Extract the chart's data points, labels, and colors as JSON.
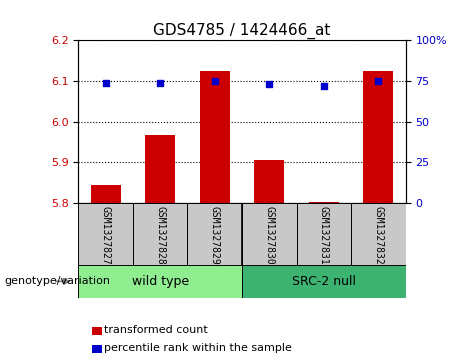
{
  "title": "GDS4785 / 1424466_at",
  "samples": [
    "GSM1327827",
    "GSM1327828",
    "GSM1327829",
    "GSM1327830",
    "GSM1327831",
    "GSM1327832"
  ],
  "bar_values": [
    5.845,
    5.968,
    6.125,
    5.905,
    5.802,
    6.125
  ],
  "percentile_values": [
    6.095,
    6.095,
    6.1,
    6.093,
    6.088,
    6.1
  ],
  "bar_bottom": 5.8,
  "ylim": [
    5.8,
    6.2
  ],
  "yticks": [
    5.8,
    5.9,
    6.0,
    6.1,
    6.2
  ],
  "right_ytick_vals": [
    0,
    25,
    50,
    75,
    100
  ],
  "right_ytick_labels": [
    "0",
    "25",
    "50",
    "75",
    "100%"
  ],
  "bar_color": "#cc0000",
  "dot_color": "#0000cc",
  "group1_label": "wild type",
  "group2_label": "SRC-2 null",
  "group1_color": "#90ee90",
  "group2_color": "#3cb371",
  "sample_bg_color": "#c8c8c8",
  "xlabel_group": "genotype/variation",
  "legend_bar_label": "transformed count",
  "legend_dot_label": "percentile rank within the sample",
  "title_fontsize": 11,
  "tick_fontsize": 8,
  "sample_fontsize": 7,
  "group_fontsize": 9,
  "legend_fontsize": 8
}
